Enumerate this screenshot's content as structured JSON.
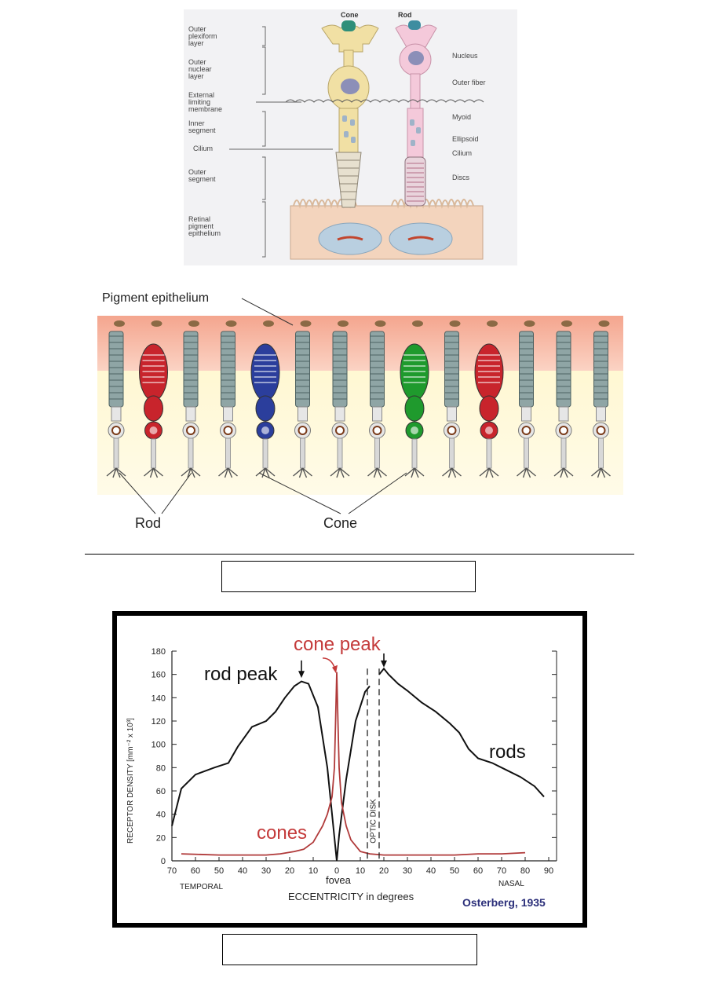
{
  "figure1": {
    "header_cone": "Cone",
    "header_rod": "Rod",
    "left_labels": {
      "outer_plexiform_1": "Outer",
      "outer_plexiform_2": "plexiform",
      "outer_plexiform_3": "layer",
      "outer_nuclear_1": "Outer",
      "outer_nuclear_2": "nuclear",
      "outer_nuclear_3": "layer",
      "elm_1": "External",
      "elm_2": "limiting",
      "elm_3": "membrane",
      "inner_seg_1": "Inner",
      "inner_seg_2": "segment",
      "cilium": "Cilium",
      "outer_seg_1": "Outer",
      "outer_seg_2": "segment",
      "rpe_1": "Retinal",
      "rpe_2": "pigment",
      "rpe_3": "epithelium"
    },
    "right_labels": {
      "nucleus": "Nucleus",
      "outer_fiber": "Outer fiber",
      "myoid": "Myoid",
      "ellipsoid": "Ellipsoid",
      "cilium": "Cilium",
      "discs": "Discs"
    }
  },
  "figure2": {
    "label_pigment": "Pigment epithelium",
    "label_rod": "Rod",
    "label_cone": "Cone"
  },
  "caption1": "",
  "caption2": "",
  "chart_data": {
    "type": "line",
    "annotations": {
      "cone_peak": "cone peak",
      "rod_peak": "rod peak",
      "rods": "rods",
      "cones": "cones",
      "optic_disk": "OPTIC DISK",
      "fovea": "fovea",
      "temporal": "TEMPORAL",
      "nasal": "NASAL",
      "credit": "Osterberg, 1935"
    },
    "xlabel": "ECCENTRICITY in degrees",
    "ylabel": "RECEPTOR DENSITY [mm⁻² x 10³]",
    "x_ticks": [
      "70",
      "60",
      "50",
      "40",
      "30",
      "20",
      "10",
      "0",
      "10",
      "20",
      "30",
      "40",
      "50",
      "60",
      "70",
      "80",
      "90"
    ],
    "y_ticks": [
      "0",
      "20",
      "40",
      "60",
      "80",
      "100",
      "120",
      "140",
      "160",
      "180"
    ],
    "ylim": [
      0,
      180
    ],
    "xlim": [
      -70,
      90
    ],
    "series": [
      {
        "name": "rods",
        "x": [
          -70,
          -66,
          -60,
          -52,
          -46,
          -42,
          -36,
          -30,
          -26,
          -22,
          -18,
          -15,
          -12,
          -8,
          -4,
          -1,
          0,
          1,
          4,
          8,
          12,
          14
        ],
        "y": [
          30,
          62,
          74,
          80,
          84,
          98,
          115,
          120,
          128,
          140,
          150,
          154,
          152,
          132,
          80,
          20,
          0,
          22,
          70,
          120,
          145,
          150
        ],
        "color": "#111111"
      },
      {
        "name": "rods",
        "x": [
          18,
          20,
          22,
          26,
          30,
          36,
          42,
          48,
          52,
          56,
          60,
          66,
          72,
          78,
          84,
          88
        ],
        "y": [
          160,
          165,
          160,
          152,
          146,
          136,
          128,
          118,
          110,
          96,
          88,
          84,
          78,
          72,
          64,
          55
        ],
        "color": "#111111"
      },
      {
        "name": "cones",
        "x": [
          -66,
          -50,
          -40,
          -30,
          -24,
          -18,
          -14,
          -10,
          -6,
          -4,
          -2,
          -1,
          -0.5,
          0,
          0.5,
          1,
          2,
          4,
          6,
          10,
          14,
          20,
          30,
          40,
          50,
          60,
          70,
          80
        ],
        "y": [
          6,
          5,
          5,
          5,
          6,
          8,
          10,
          16,
          30,
          40,
          55,
          80,
          120,
          162,
          120,
          80,
          50,
          30,
          18,
          8,
          6,
          5,
          5,
          5,
          5,
          6,
          6,
          7
        ],
        "color": "#b03a3a"
      }
    ],
    "optic_disk_x": [
      13,
      18
    ],
    "grid": false,
    "legend": "none"
  }
}
